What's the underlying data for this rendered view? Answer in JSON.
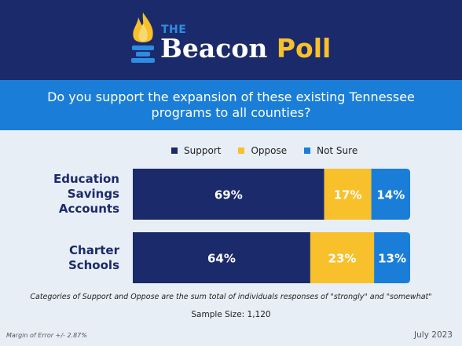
{
  "brand": {
    "the": "THE",
    "name": "Beacon",
    "poll": "Poll"
  },
  "question": "Do you support the expansion of these existing Tennessee programs to all counties?",
  "colors": {
    "support": "#1b2a6b",
    "oppose": "#f8c02a",
    "not_sure": "#1a7ed8",
    "label_dark": "#1b2a6b"
  },
  "chart_data": {
    "type": "bar",
    "orientation": "horizontal",
    "stacked": true,
    "categories": [
      "Education Savings Accounts",
      "Charter Schools"
    ],
    "category_lines": [
      [
        "Education",
        "Savings",
        "Accounts"
      ],
      [
        "Charter",
        "Schools"
      ]
    ],
    "series": [
      {
        "name": "Support",
        "values": [
          69,
          64
        ],
        "labels": [
          "69%",
          "64%"
        ]
      },
      {
        "name": "Oppose",
        "values": [
          17,
          23
        ],
        "labels": [
          "17%",
          "23%"
        ]
      },
      {
        "name": "Not Sure",
        "values": [
          14,
          13
        ],
        "labels": [
          "14%",
          "13%"
        ]
      }
    ],
    "xlim": [
      0,
      100
    ],
    "legend_position": "top",
    "grid": false
  },
  "footnote": "Categories of Support and Oppose are the sum total of individuals responses of \"strongly\" and \"somewhat\"",
  "sample_size": "Sample Size: 1,120",
  "margin_of_error": "Margin of Error +/- 2.87%",
  "date": "July 2023"
}
